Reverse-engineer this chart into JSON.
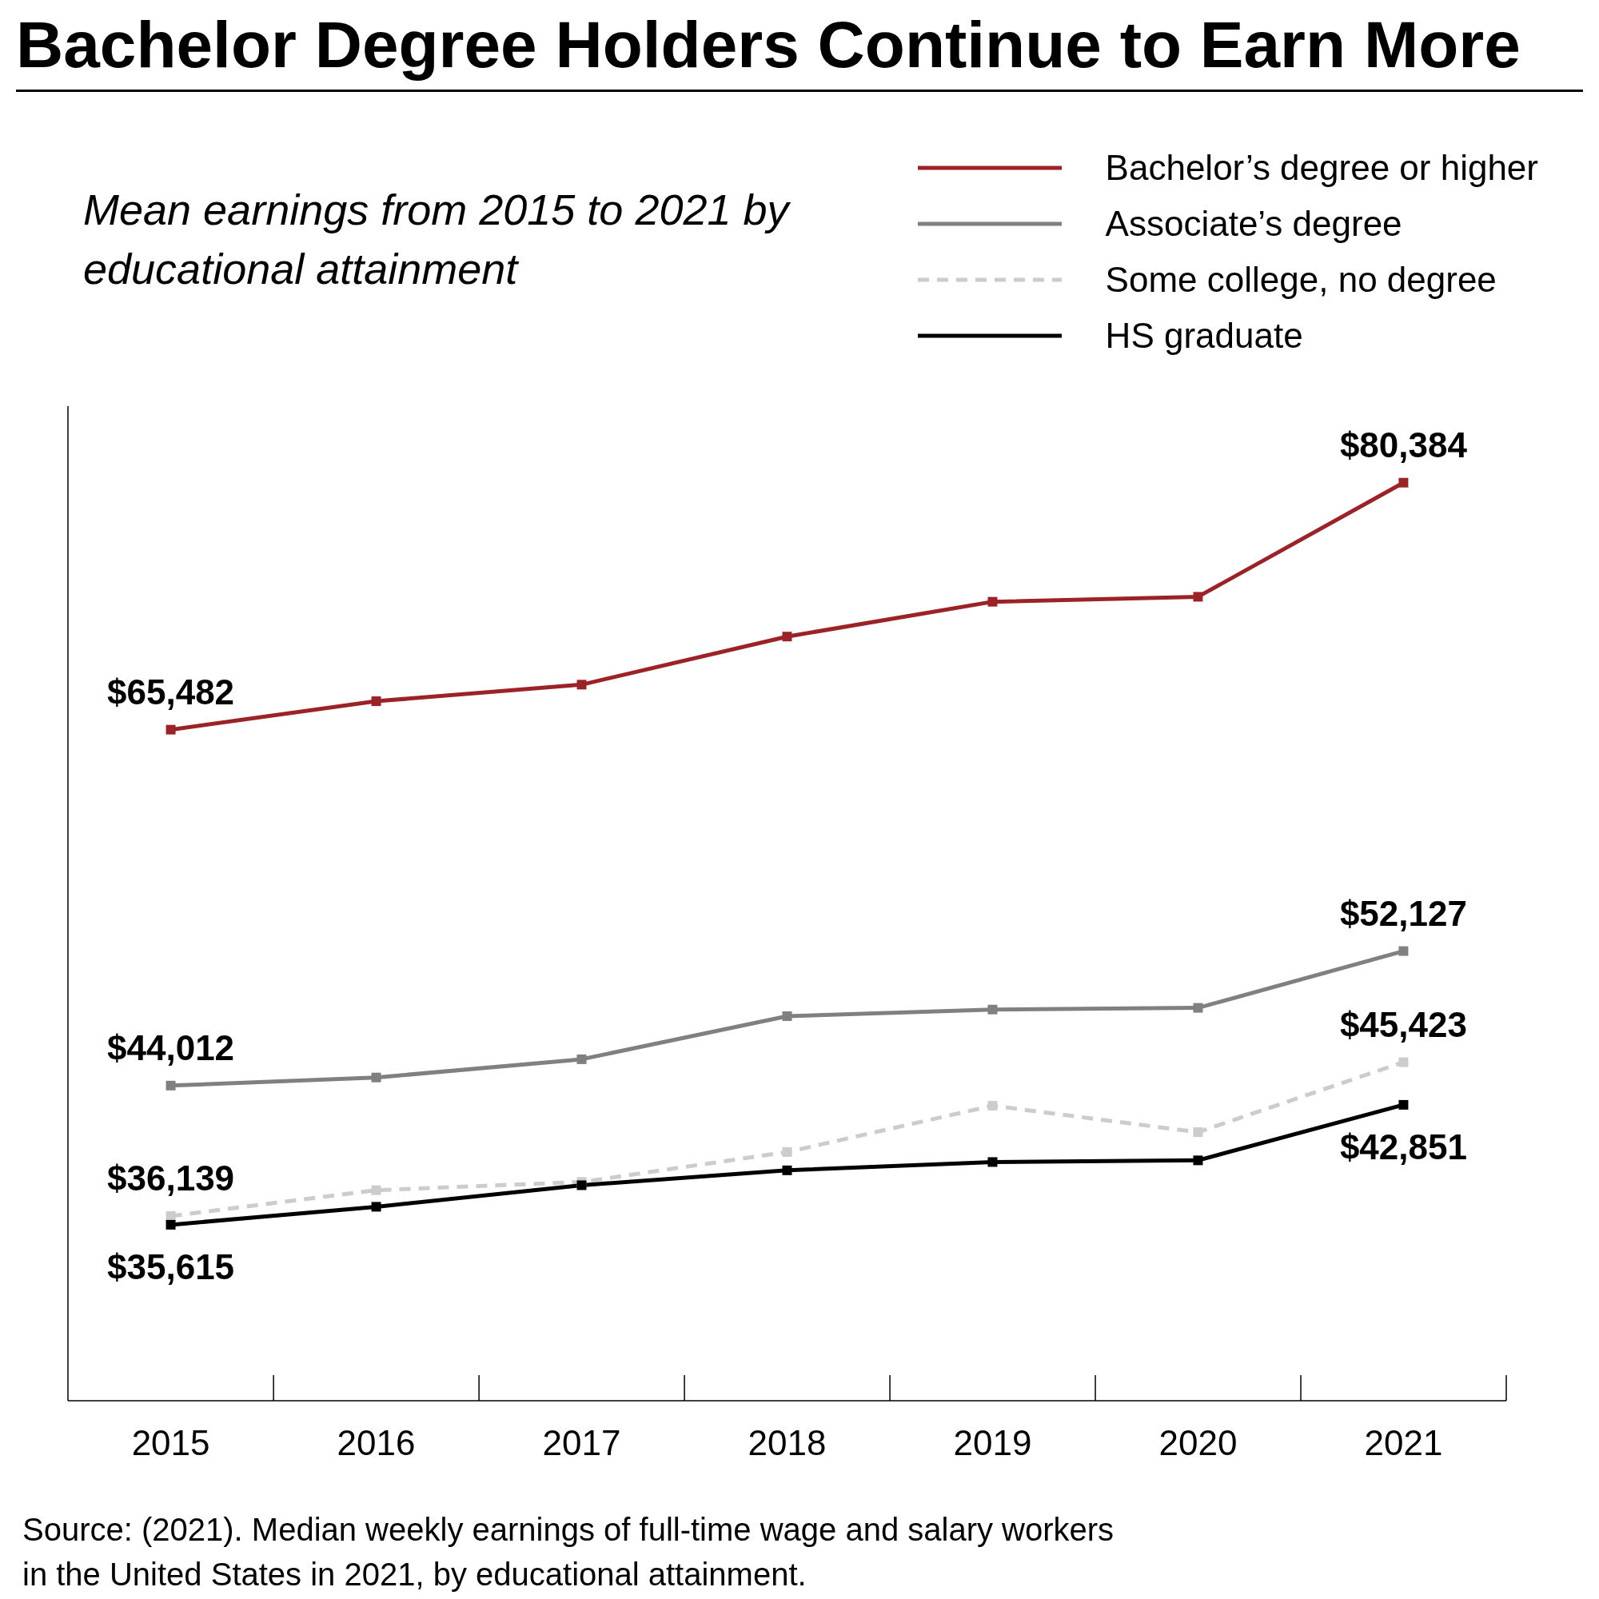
{
  "chart_data": {
    "type": "line",
    "title": "Bachelor Degree Holders Continue to Earn More",
    "subtitle": "Mean earnings from 2015 to 2021 by educational attainment",
    "categories": [
      "2015",
      "2016",
      "2017",
      "2018",
      "2019",
      "2020",
      "2021"
    ],
    "series": [
      {
        "name": "Bachelor’s degree or higher",
        "color": "#9b2328",
        "line_style": "solid",
        "values": [
          65482,
          67200,
          68200,
          71100,
          73200,
          73500,
          80384
        ],
        "value_labels": [
          "$65,482",
          null,
          null,
          null,
          null,
          null,
          "$80,384"
        ]
      },
      {
        "name": "Associate’s degree",
        "color": "#808080",
        "line_style": "solid",
        "values": [
          44012,
          44500,
          45600,
          48200,
          48600,
          48700,
          52127
        ],
        "value_labels": [
          "$44,012",
          null,
          null,
          null,
          null,
          null,
          "$52,127"
        ]
      },
      {
        "name": "Some college, no degree",
        "color": "#cccccc",
        "line_style": "dashed",
        "values": [
          36139,
          37700,
          38200,
          40000,
          42800,
          41200,
          45423
        ],
        "value_labels": [
          "$36,139",
          null,
          null,
          null,
          null,
          null,
          "$45,423"
        ]
      },
      {
        "name": "HS graduate",
        "color": "#000000",
        "line_style": "solid",
        "values": [
          35615,
          36700,
          38000,
          38900,
          39400,
          39500,
          42851
        ],
        "value_labels": [
          "$35,615",
          null,
          null,
          null,
          null,
          null,
          "$42,851"
        ]
      }
    ],
    "ylim": [
      25000,
      85000
    ],
    "tick_labels": "x",
    "marker": "square",
    "legend": "top right",
    "grid": false,
    "annotations": [
      "Source: (2021). Median weekly earnings of full-time wage and salary workers in the United States in 2021, by educational attainment."
    ]
  }
}
